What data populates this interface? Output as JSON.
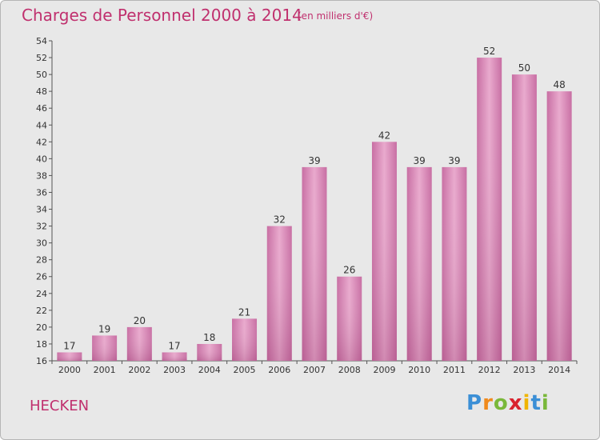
{
  "title": "Charges de Personnel 2000 à 2014",
  "subtitle": "(en milliers d'€)",
  "commune": "HECKEN",
  "logo": {
    "letters": [
      "P",
      "r",
      "o",
      "x",
      "i",
      "t",
      "i"
    ],
    "colors": [
      "#3b8fd6",
      "#f08a1c",
      "#7ab83a",
      "#d9232e",
      "#f0b400",
      "#3b8fd6",
      "#7ab83a"
    ]
  },
  "colors": {
    "bar": "#cf7fae",
    "bar_light": "#e8a6cc",
    "text": "#c0306e"
  },
  "chart_data": {
    "type": "bar",
    "title": "Charges de Personnel 2000 à 2014",
    "categories": [
      "2000",
      "2001",
      "2002",
      "2003",
      "2004",
      "2005",
      "2006",
      "2007",
      "2008",
      "2009",
      "2010",
      "2011",
      "2012",
      "2013",
      "2014"
    ],
    "values": [
      17,
      19,
      20,
      17,
      18,
      21,
      32,
      39,
      26,
      42,
      39,
      39,
      52,
      50,
      48
    ],
    "ylim": [
      16,
      54
    ],
    "yticks": [
      16,
      18,
      20,
      22,
      24,
      26,
      28,
      30,
      32,
      34,
      36,
      38,
      40,
      42,
      44,
      46,
      48,
      50,
      52,
      54
    ],
    "grid": false
  }
}
